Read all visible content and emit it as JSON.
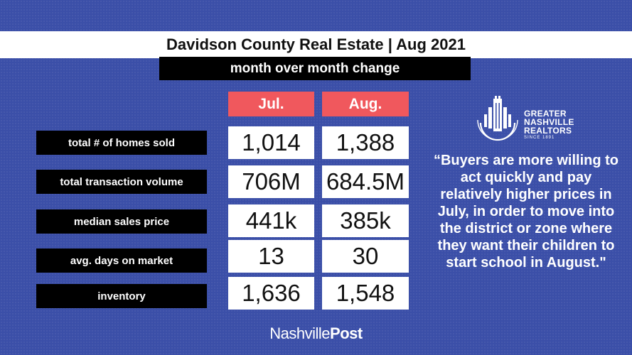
{
  "title": "Davidson County Real Estate | Aug 2021",
  "subtitle": "month over month change",
  "columns": [
    "Jul.",
    "Aug."
  ],
  "rows": [
    {
      "label": "total # of homes sold",
      "jul": "1,014",
      "aug": "1,388"
    },
    {
      "label": "total transaction volume",
      "jul": "706M",
      "aug": "684.5M"
    },
    {
      "label": "median sales price",
      "jul": "441k",
      "aug": "385k"
    },
    {
      "label": "avg. days on market",
      "jul": "13",
      "aug": "30"
    },
    {
      "label": "inventory",
      "jul": "1,636",
      "aug": "1,548"
    }
  ],
  "quote": "“Buyers are more willing to act quickly and pay relatively higher prices in July, in order to move into the district or zone where they want their children to start school in August.\"",
  "logo": {
    "icon": "building-skyline-icon",
    "line1": "GREATER",
    "line2": "NASHVILLE",
    "line3": "REALTORS",
    "since": "SINCE 1891"
  },
  "footer": {
    "part1": "Nashville",
    "part2": "Post"
  },
  "colors": {
    "background": "#3b4fa8",
    "header_accent": "#f0585d",
    "label_bg": "#000000",
    "cell_bg": "#ffffff"
  }
}
